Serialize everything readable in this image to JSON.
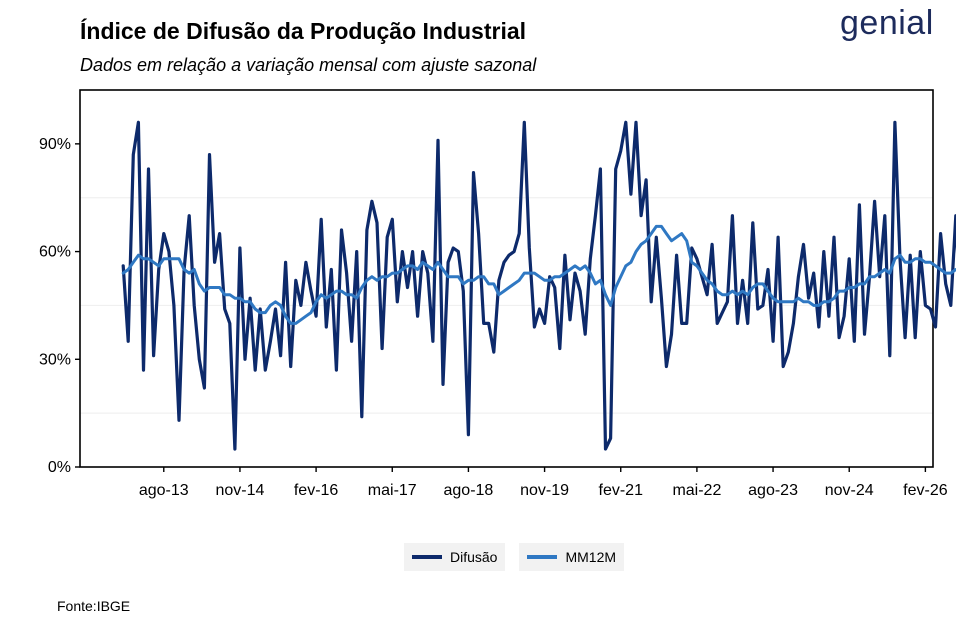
{
  "header": {
    "title": "Índice de Difusão da Produção Industrial",
    "subtitle": "Dados em relação a variação mensal com ajuste sazonal",
    "logo_text": "genial",
    "source": "Fonte:IBGE"
  },
  "colors": {
    "difusao": "#0d2a6b",
    "mm12m": "#2f78c3",
    "logo": "#1d2b5c"
  },
  "chart_data": {
    "type": "line",
    "title": "Índice de Difusão da Produção Industrial",
    "subtitle": "Dados em relação a variação mensal com ajuste sazonal",
    "xlabel": "",
    "ylabel": "",
    "x_axis_type": "date",
    "x_ticks": [
      "ago-13",
      "nov-14",
      "fev-16",
      "mai-17",
      "ago-18",
      "nov-19",
      "fev-21",
      "mai-22",
      "ago-23",
      "nov-24",
      "fev-26"
    ],
    "x_tick_dates": [
      "2013-08",
      "2014-11",
      "2016-02",
      "2017-05",
      "2018-08",
      "2019-11",
      "2021-02",
      "2022-05",
      "2023-08",
      "2024-11",
      "2026-02"
    ],
    "y_ticks": [
      "0%",
      "30%",
      "60%",
      "90%"
    ],
    "ylim": [
      0,
      105
    ],
    "grid": "horizontal minor lines",
    "legend_position": "bottom",
    "start_date": "2012-12",
    "end_date": "2025-05",
    "series": [
      {
        "name": "Difusão",
        "values": [
          56,
          35,
          87,
          96,
          27,
          83,
          31,
          55,
          65,
          60,
          45,
          13,
          55,
          70,
          45,
          30,
          22,
          87,
          57,
          65,
          44,
          40,
          5,
          61,
          30,
          47,
          27,
          44,
          27,
          35,
          44,
          31,
          57,
          28,
          52,
          45,
          57,
          49,
          42,
          69,
          39,
          55,
          27,
          66,
          54,
          35,
          60,
          14,
          66,
          74,
          68,
          33,
          64,
          69,
          46,
          60,
          50,
          60,
          42,
          60,
          54,
          35,
          91,
          23,
          57,
          61,
          60,
          49,
          9,
          82,
          65,
          40,
          40,
          32,
          52,
          57,
          59,
          60,
          65,
          96,
          61,
          39,
          44,
          40,
          53,
          50,
          33,
          59,
          41,
          54,
          49,
          37,
          58,
          70,
          83,
          5,
          8,
          83,
          88,
          96,
          76,
          96,
          70,
          80,
          46,
          64,
          47,
          28,
          37,
          59,
          40,
          40,
          61,
          58,
          53,
          48,
          62,
          40,
          43,
          46,
          70,
          40,
          52,
          40,
          68,
          44,
          45,
          55,
          35,
          64,
          28,
          32,
          40,
          53,
          62,
          47,
          54,
          39,
          60,
          42,
          64,
          36,
          42,
          58,
          35,
          73,
          37,
          53,
          74,
          53,
          70,
          31,
          96,
          58,
          36,
          59,
          36,
          60,
          45,
          44,
          39,
          65,
          51,
          45,
          70,
          40,
          44,
          48,
          65,
          49
        ],
        "color": "#0d2a6b"
      },
      {
        "name": "MM12M",
        "values": [
          54,
          55,
          57,
          59,
          58,
          58,
          57,
          56,
          58,
          58,
          58,
          58,
          55,
          54,
          55,
          51,
          49,
          50,
          50,
          50,
          48,
          48,
          47,
          47,
          46,
          46,
          44,
          43,
          43,
          45,
          46,
          45,
          42,
          40,
          40,
          41,
          42,
          43,
          46,
          48,
          47,
          48,
          49,
          49,
          48,
          48,
          47,
          50,
          52,
          53,
          52,
          53,
          53,
          54,
          54,
          55,
          56,
          56,
          55,
          57,
          56,
          55,
          57,
          55,
          53,
          53,
          53,
          51,
          52,
          52,
          53,
          53,
          51,
          51,
          48,
          49,
          50,
          51,
          52,
          54,
          54,
          54,
          53,
          52,
          52,
          53,
          53,
          54,
          55,
          56,
          55,
          56,
          54,
          51,
          52,
          48,
          45,
          50,
          53,
          56,
          57,
          60,
          62,
          63,
          65,
          67,
          67,
          65,
          63,
          64,
          65,
          63,
          57,
          56,
          54,
          52,
          51,
          49,
          48,
          48,
          49,
          48,
          49,
          48,
          50,
          51,
          51,
          49,
          47,
          46,
          46,
          46,
          46,
          47,
          46,
          46,
          45,
          45,
          46,
          46,
          47,
          49,
          49,
          50,
          50,
          51,
          51,
          53,
          53,
          54,
          55,
          54,
          58,
          59,
          57,
          57,
          58,
          58,
          57,
          57,
          56,
          55,
          54,
          54,
          55,
          55,
          53,
          52,
          51,
          50
        ],
        "color": "#2f78c3"
      }
    ]
  }
}
